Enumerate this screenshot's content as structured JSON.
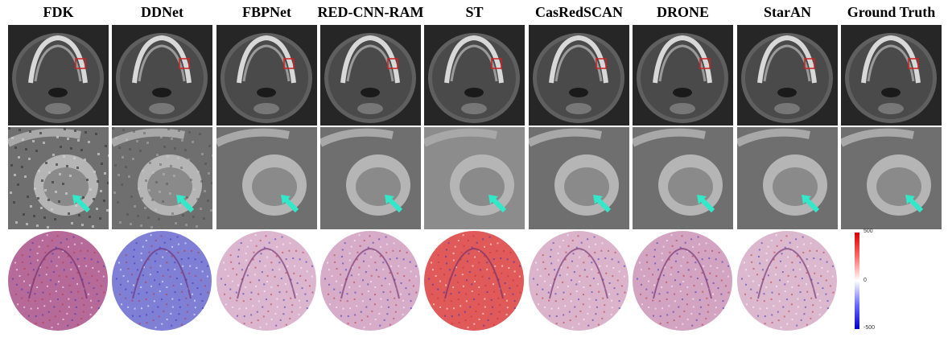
{
  "methods": [
    {
      "title": "FDK",
      "noise": "high",
      "diff_tint": "#b56a9a"
    },
    {
      "title": "DDNet",
      "noise": "medium",
      "diff_tint": "#7f7fd6"
    },
    {
      "title": "FBPNet",
      "noise": "low",
      "diff_tint": "#dcb6cf"
    },
    {
      "title": "RED-CNN-RAM",
      "noise": "low",
      "diff_tint": "#d7acc9"
    },
    {
      "title": "ST",
      "noise": "blur",
      "diff_tint": "#e05a5a"
    },
    {
      "title": "CasRedSCAN",
      "noise": "low",
      "diff_tint": "#dbb4cc"
    },
    {
      "title": "DRONE",
      "noise": "low",
      "diff_tint": "#d3a3c2"
    },
    {
      "title": "StarAN",
      "noise": "low",
      "diff_tint": "#dcb8cf"
    },
    {
      "title": "Ground Truth",
      "noise": "none",
      "diff_tint": null
    }
  ],
  "colorbar": {
    "max_label": "500",
    "mid_label": "0",
    "min_label": "-500"
  },
  "colors": {
    "roi_box": "#cc2222",
    "arrow": "#33e8c8"
  }
}
